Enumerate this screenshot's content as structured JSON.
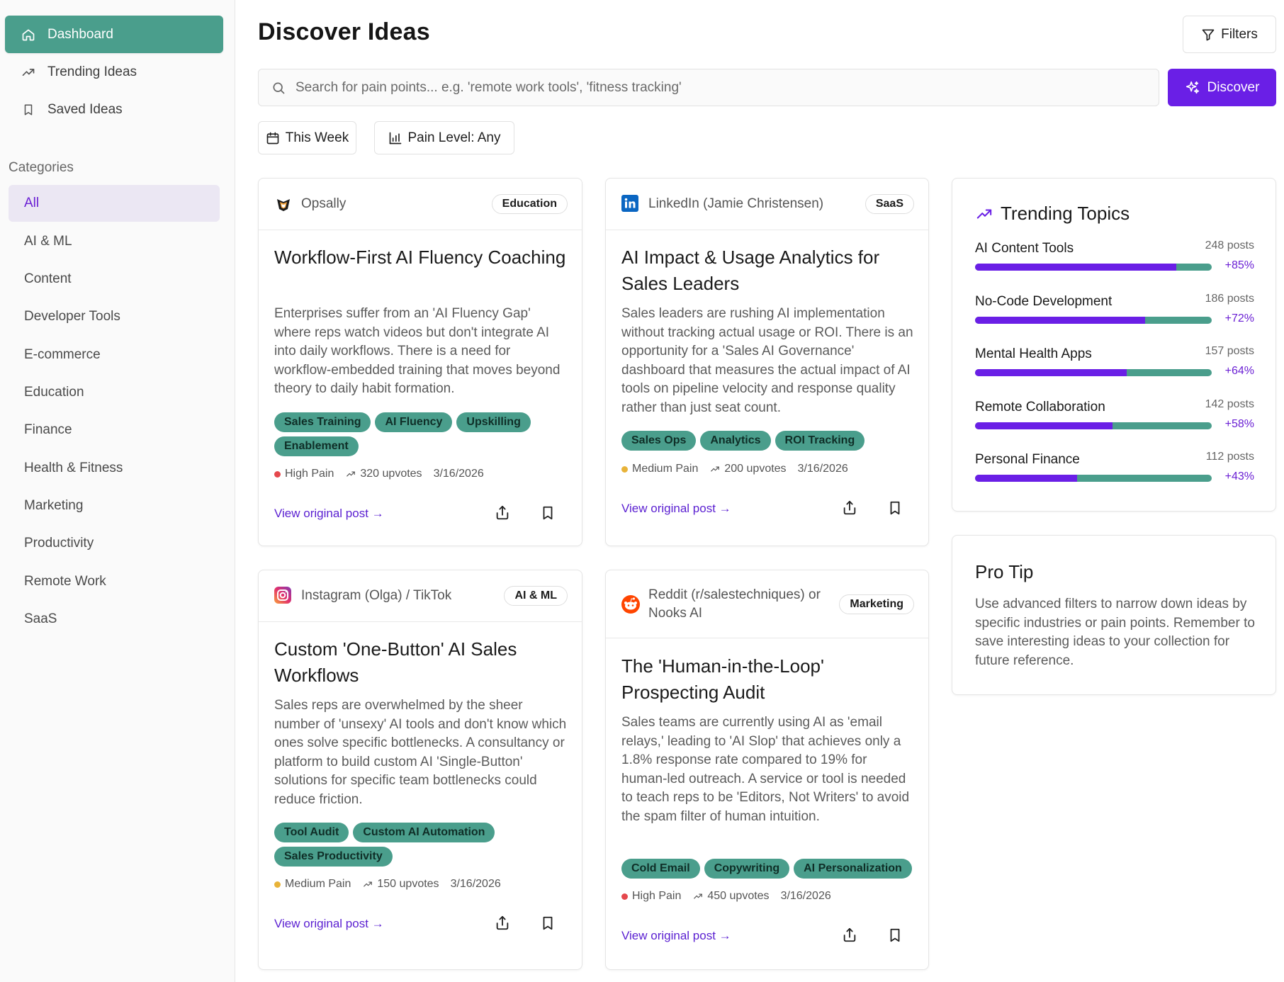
{
  "sidebar": {
    "nav": [
      {
        "label": "Dashboard",
        "icon": "home-icon",
        "active": true
      },
      {
        "label": "Trending Ideas",
        "icon": "trending-icon",
        "active": false
      },
      {
        "label": "Saved Ideas",
        "icon": "bookmark-icon",
        "active": false
      }
    ],
    "categories_heading": "Categories",
    "categories": [
      "All",
      "AI & ML",
      "Content",
      "Developer Tools",
      "E-commerce",
      "Education",
      "Finance",
      "Health & Fitness",
      "Marketing",
      "Productivity",
      "Remote Work",
      "SaaS"
    ],
    "active_category": "All"
  },
  "header": {
    "title": "Discover Ideas",
    "filters_label": "Filters",
    "search_placeholder": "Search for pain points... e.g. 'remote work tools', 'fitness tracking'",
    "discover_label": "Discover",
    "time_filter": "This Week",
    "pain_filter": "Pain Level: Any"
  },
  "cards": [
    {
      "source": "Opsally",
      "source_icon": "opsally-logo-icon",
      "category": "Education",
      "title": "Workflow-First AI Fluency Coaching",
      "description": "Enterprises suffer from an 'AI Fluency Gap' where reps watch videos but don't integrate AI into daily workflows. There is a need for workflow-embedded training that moves beyond theory to daily habit formation.",
      "tags": [
        "Sales Training",
        "AI Fluency",
        "Upskilling",
        "Enablement"
      ],
      "pain": "High Pain",
      "pain_color": "#e5484d",
      "upvotes": "320 upvotes",
      "date": "3/16/2026",
      "link": "View original post →"
    },
    {
      "source": "LinkedIn (Jamie Christensen)",
      "source_icon": "linkedin-icon",
      "category": "SaaS",
      "title": "AI Impact & Usage Analytics for Sales Leaders",
      "description": "Sales leaders are rushing AI implementation without tracking actual usage or ROI. There is an opportunity for a 'Sales AI Governance' dashboard that measures the actual impact of AI tools on pipeline velocity and response quality rather than just seat count.",
      "tags": [
        "Sales Ops",
        "Analytics",
        "ROI Tracking"
      ],
      "pain": "Medium Pain",
      "pain_color": "#e8b339",
      "upvotes": "200 upvotes",
      "date": "3/16/2026",
      "link": "View original post →"
    },
    {
      "source": "Instagram (Olga) / TikTok",
      "source_icon": "instagram-icon",
      "category": "AI & ML",
      "title": "Custom 'One-Button' AI Sales Workflows",
      "description": "Sales reps are overwhelmed by the sheer number of 'unsexy' AI tools and don't know which ones solve specific bottlenecks. A consultancy or platform to build custom AI 'Single-Button' solutions for specific team bottlenecks could reduce friction.",
      "tags": [
        "Tool Audit",
        "Custom AI Automation",
        "Sales Productivity"
      ],
      "pain": "Medium Pain",
      "pain_color": "#e8b339",
      "upvotes": "150 upvotes",
      "date": "3/16/2026",
      "link": "View original post →"
    },
    {
      "source": "Reddit (r/salestechniques) or Nooks AI",
      "source_icon": "reddit-icon",
      "category": "Marketing",
      "title": "The 'Human-in-the-Loop' Prospecting Audit",
      "description": "Sales teams are currently using AI as 'email relays,' leading to 'AI Slop' that achieves only a 1.8% response rate compared to 19% for human-led outreach. A service or tool is needed to teach reps to be 'Editors, Not Writers' to avoid the spam filter of human intuition.",
      "tags": [
        "Cold Email",
        "Copywriting",
        "AI Personalization"
      ],
      "pain": "High Pain",
      "pain_color": "#e5484d",
      "upvotes": "450 upvotes",
      "date": "3/16/2026",
      "link": "View original post →"
    }
  ],
  "trending": {
    "title": "Trending Topics",
    "topics": [
      {
        "name": "AI Content Tools",
        "posts": "248 posts",
        "growth": "+85%",
        "bar_fraction": 0.85
      },
      {
        "name": "No-Code Development",
        "posts": "186 posts",
        "growth": "+72%",
        "bar_fraction": 0.72
      },
      {
        "name": "Mental Health Apps",
        "posts": "157 posts",
        "growth": "+64%",
        "bar_fraction": 0.64
      },
      {
        "name": "Remote Collaboration",
        "posts": "142 posts",
        "growth": "+58%",
        "bar_fraction": 0.58
      },
      {
        "name": "Personal Finance",
        "posts": "112 posts",
        "growth": "+43%",
        "bar_fraction": 0.43
      }
    ]
  },
  "pro_tip": {
    "title": "Pro Tip",
    "text": "Use advanced filters to narrow down ideas by specific industries or pain points. Remember to save interesting ideas to your collection for future reference."
  }
}
